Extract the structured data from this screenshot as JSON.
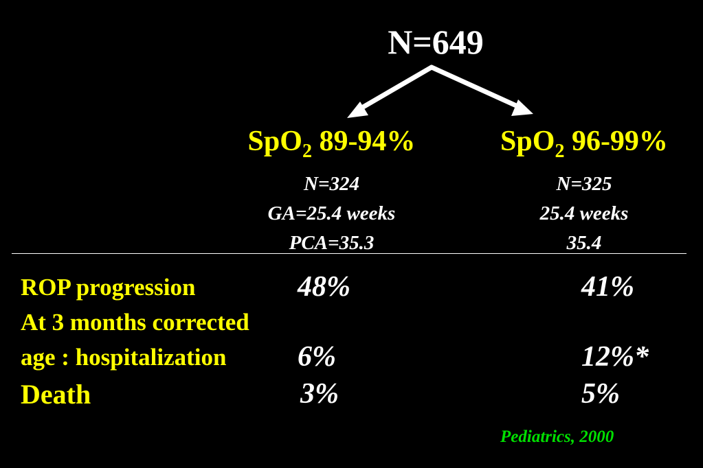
{
  "total": "N=649",
  "groups": [
    {
      "title_prefix": "SpO",
      "title_sub": "2",
      "title_suffix": " 89-94%",
      "lines": [
        "N=324",
        "GA=25.4 weeks",
        "PCA=35.3"
      ]
    },
    {
      "title_prefix": "SpO",
      "title_sub": "2",
      "title_suffix": " 96-99%",
      "lines": [
        "N=325",
        "25.4 weeks",
        "35.4"
      ]
    }
  ],
  "rows": [
    {
      "label": "ROP progression",
      "left": "48%",
      "right": "41%"
    },
    {
      "label": "At 3 months corrected",
      "left": "",
      "right": ""
    },
    {
      "label": "age : hospitalization",
      "left": "6%",
      "right": "12%*"
    },
    {
      "label": "Death",
      "left": "3%",
      "right": "5%"
    }
  ],
  "citation": "Pediatrics, 2000",
  "colors": {
    "background": "#000000",
    "label": "#ffff00",
    "value": "#ffffff",
    "citation": "#00e000",
    "arrow": "#ffffff"
  }
}
